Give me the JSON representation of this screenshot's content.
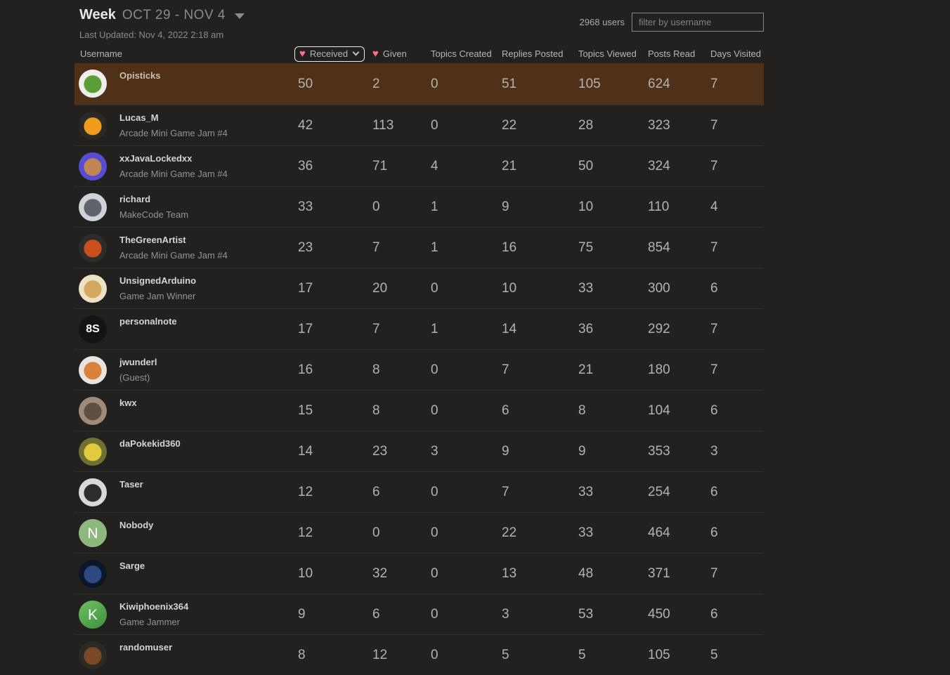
{
  "header": {
    "period": "Week",
    "date_range": "OCT 29 - NOV 4",
    "last_updated": "Last Updated: Nov 4, 2022 2:18 am",
    "users_count": "2968 users",
    "filter_placeholder": "filter by username"
  },
  "colors": {
    "heart": "#fa6c8d",
    "row_highlight": "#4e3118",
    "background": "#222120"
  },
  "table": {
    "sort": {
      "column": "received",
      "icon": "heart-icon"
    },
    "headers": {
      "username": "Username",
      "received": "Received",
      "given": "Given",
      "topics_created": "Topics Created",
      "replies_posted": "Replies Posted",
      "topics_viewed": "Topics Viewed",
      "posts_read": "Posts Read",
      "days_visited": "Days Visited"
    },
    "rows": [
      {
        "username": "Opisticks",
        "title": "",
        "highlighted": true,
        "received": 50,
        "given": 2,
        "topics_created": 0,
        "replies_posted": 51,
        "topics_viewed": 105,
        "posts_read": 624,
        "days_visited": 7,
        "avatar": {
          "name": "opisticks-avatar",
          "letter": "",
          "bg": "#efeeea",
          "accent": "#5a9e3a"
        }
      },
      {
        "username": "Lucas_M",
        "title": "Arcade Mini Game Jam #4",
        "highlighted": false,
        "received": 42,
        "given": 113,
        "topics_created": 0,
        "replies_posted": 22,
        "topics_viewed": 28,
        "posts_read": 323,
        "days_visited": 7,
        "avatar": {
          "name": "lucas-m-avatar",
          "letter": "",
          "bg": "#2b2926",
          "accent": "#f09c1c"
        }
      },
      {
        "username": "xxJavaLockedxx",
        "title": "Arcade Mini Game Jam #4",
        "highlighted": false,
        "received": 36,
        "given": 71,
        "topics_created": 4,
        "replies_posted": 21,
        "topics_viewed": 50,
        "posts_read": 324,
        "days_visited": 7,
        "avatar": {
          "name": "xxjavalockedxx-avatar",
          "letter": "",
          "bg": "#574dd0",
          "accent": "#c08455"
        }
      },
      {
        "username": "richard",
        "title": "MakeCode Team",
        "highlighted": false,
        "received": 33,
        "given": 0,
        "topics_created": 1,
        "replies_posted": 9,
        "topics_viewed": 10,
        "posts_read": 110,
        "days_visited": 4,
        "avatar": {
          "name": "richard-avatar",
          "letter": "",
          "bg": "#cfd2d6",
          "accent": "#5f646c"
        }
      },
      {
        "username": "TheGreenArtist",
        "title": "Arcade Mini Game Jam #4",
        "highlighted": false,
        "received": 23,
        "given": 7,
        "topics_created": 1,
        "replies_posted": 16,
        "topics_viewed": 75,
        "posts_read": 854,
        "days_visited": 7,
        "avatar": {
          "name": "thegreenartist-avatar",
          "letter": "",
          "bg": "#2e2c2a",
          "accent": "#c9501d"
        }
      },
      {
        "username": "UnsignedArduino",
        "title": "Game Jam Winner",
        "highlighted": false,
        "received": 17,
        "given": 20,
        "topics_created": 0,
        "replies_posted": 10,
        "topics_viewed": 33,
        "posts_read": 300,
        "days_visited": 6,
        "avatar": {
          "name": "unsignedarduino-avatar",
          "letter": "",
          "bg": "#eee2c6",
          "accent": "#d3a85e"
        }
      },
      {
        "username": "personalnote",
        "title": "",
        "highlighted": false,
        "received": 17,
        "given": 7,
        "topics_created": 1,
        "replies_posted": 14,
        "topics_viewed": 36,
        "posts_read": 292,
        "days_visited": 7,
        "avatar": {
          "name": "personalnote-avatar",
          "letter": "8S",
          "bg": "#141414",
          "accent": ""
        }
      },
      {
        "username": "jwunderl",
        "title": "(Guest)",
        "highlighted": false,
        "received": 16,
        "given": 8,
        "topics_created": 0,
        "replies_posted": 7,
        "topics_viewed": 21,
        "posts_read": 180,
        "days_visited": 7,
        "avatar": {
          "name": "jwunderl-avatar",
          "letter": "",
          "bg": "#e9e4dd",
          "accent": "#d8823c"
        }
      },
      {
        "username": "kwx",
        "title": "",
        "highlighted": false,
        "received": 15,
        "given": 8,
        "topics_created": 0,
        "replies_posted": 6,
        "topics_viewed": 8,
        "posts_read": 104,
        "days_visited": 6,
        "avatar": {
          "name": "kwx-avatar",
          "letter": "",
          "bg": "#a08b79",
          "accent": "#5f4f43"
        }
      },
      {
        "username": "daPokekid360",
        "title": "",
        "highlighted": false,
        "received": 14,
        "given": 23,
        "topics_created": 3,
        "replies_posted": 9,
        "topics_viewed": 9,
        "posts_read": 353,
        "days_visited": 3,
        "avatar": {
          "name": "dapokekid360-avatar",
          "letter": "",
          "bg": "#6f7034",
          "accent": "#e2c93e"
        }
      },
      {
        "username": "Taser",
        "title": "",
        "highlighted": false,
        "received": 12,
        "given": 6,
        "topics_created": 0,
        "replies_posted": 7,
        "topics_viewed": 33,
        "posts_read": 254,
        "days_visited": 6,
        "avatar": {
          "name": "taser-avatar",
          "letter": "",
          "bg": "#d9d9d9",
          "accent": "#2d2d2d"
        }
      },
      {
        "username": "Nobody",
        "title": "",
        "highlighted": false,
        "received": 12,
        "given": 0,
        "topics_created": 0,
        "replies_posted": 22,
        "topics_viewed": 33,
        "posts_read": 464,
        "days_visited": 6,
        "avatar": {
          "name": "nobody-avatar",
          "letter": "N",
          "bg": "#8fb87e",
          "accent": ""
        }
      },
      {
        "username": "Sarge",
        "title": "",
        "highlighted": false,
        "received": 10,
        "given": 32,
        "topics_created": 0,
        "replies_posted": 13,
        "topics_viewed": 48,
        "posts_read": 371,
        "days_visited": 7,
        "avatar": {
          "name": "sarge-avatar",
          "letter": "",
          "bg": "#0c1626",
          "accent": "#2c4a80"
        }
      },
      {
        "username": "Kiwiphoenix364",
        "title": "Game Jammer",
        "highlighted": false,
        "received": 9,
        "given": 6,
        "topics_created": 0,
        "replies_posted": 3,
        "topics_viewed": 53,
        "posts_read": 450,
        "days_visited": 6,
        "avatar": {
          "name": "kiwiphoenix364-avatar",
          "letter": "K",
          "bg": "#3f8f3e",
          "accent": "#6fbf61"
        }
      },
      {
        "username": "randomuser",
        "title": "",
        "highlighted": false,
        "received": 8,
        "given": 12,
        "topics_created": 0,
        "replies_posted": 5,
        "topics_viewed": 5,
        "posts_read": 105,
        "days_visited": 5,
        "avatar": {
          "name": "randomuser-avatar",
          "letter": "",
          "bg": "#2b2926",
          "accent": "#7a4a28"
        }
      }
    ]
  }
}
